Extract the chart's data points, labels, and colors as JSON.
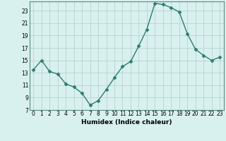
{
  "x": [
    0,
    1,
    2,
    3,
    4,
    5,
    6,
    7,
    8,
    9,
    10,
    11,
    12,
    13,
    14,
    15,
    16,
    17,
    18,
    19,
    20,
    21,
    22,
    23
  ],
  "y": [
    13.5,
    15.0,
    13.2,
    12.8,
    11.2,
    10.7,
    9.7,
    7.8,
    8.5,
    10.3,
    12.2,
    14.0,
    14.8,
    17.3,
    20.0,
    24.2,
    24.0,
    23.5,
    22.8,
    19.3,
    16.8,
    15.8,
    15.0,
    15.5
  ],
  "line_color": "#2e7d6e",
  "marker": "D",
  "marker_size": 2.5,
  "bg_color": "#d8f0ee",
  "grid_color": "#b8d4d0",
  "axes_color": "#5a8a80",
  "xlabel": "Humidex (Indice chaleur)",
  "xlim": [
    -0.5,
    23.5
  ],
  "ylim": [
    7,
    24.5
  ],
  "yticks": [
    7,
    9,
    11,
    13,
    15,
    17,
    19,
    21,
    23
  ],
  "xticks": [
    0,
    1,
    2,
    3,
    4,
    5,
    6,
    7,
    8,
    9,
    10,
    11,
    12,
    13,
    14,
    15,
    16,
    17,
    18,
    19,
    20,
    21,
    22,
    23
  ],
  "xtick_labels": [
    "0",
    "1",
    "2",
    "3",
    "4",
    "5",
    "6",
    "7",
    "8",
    "9",
    "10",
    "11",
    "12",
    "13",
    "14",
    "15",
    "16",
    "17",
    "18",
    "19",
    "20",
    "21",
    "22",
    "23"
  ],
  "xlabel_fontsize": 6.5,
  "tick_fontsize": 5.5
}
